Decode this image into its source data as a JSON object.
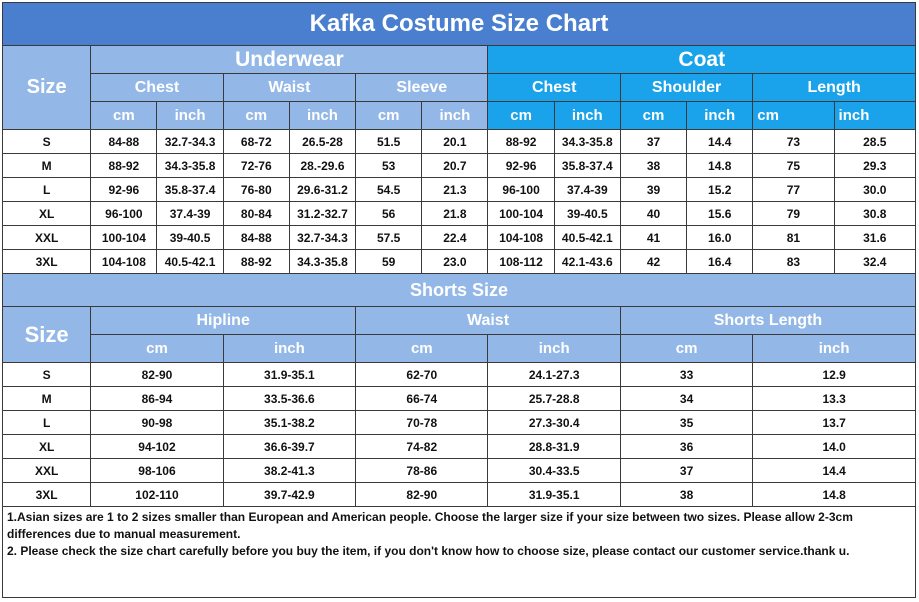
{
  "title": "Kafka Costume Size Chart",
  "top": {
    "size_label": "Size",
    "underwear_label": "Underwear",
    "coat_label": "Coat",
    "underwear_cols": [
      "Chest",
      "Waist",
      "Sleeve"
    ],
    "coat_cols": [
      "Chest",
      "Shoulder",
      "Length"
    ],
    "units": [
      "cm",
      "inch",
      "cm",
      "inch",
      "cm",
      "inch",
      "cm",
      "inch",
      "cm",
      "inch",
      "cm",
      "inch"
    ],
    "rows": [
      [
        "S",
        "84-88",
        "32.7-34.3",
        "68-72",
        "26.5-28",
        "51.5",
        "20.1",
        "88-92",
        "34.3-35.8",
        "37",
        "14.4",
        "73",
        "28.5"
      ],
      [
        "M",
        "88-92",
        "34.3-35.8",
        "72-76",
        "28.-29.6",
        "53",
        "20.7",
        "92-96",
        "35.8-37.4",
        "38",
        "14.8",
        "75",
        "29.3"
      ],
      [
        "L",
        "92-96",
        "35.8-37.4",
        "76-80",
        "29.6-31.2",
        "54.5",
        "21.3",
        "96-100",
        "37.4-39",
        "39",
        "15.2",
        "77",
        "30.0"
      ],
      [
        "XL",
        "96-100",
        "37.4-39",
        "80-84",
        "31.2-32.7",
        "56",
        "21.8",
        "100-104",
        "39-40.5",
        "40",
        "15.6",
        "79",
        "30.8"
      ],
      [
        "XXL",
        "100-104",
        "39-40.5",
        "84-88",
        "32.7-34.3",
        "57.5",
        "22.4",
        "104-108",
        "40.5-42.1",
        "41",
        "16.0",
        "81",
        "31.6"
      ],
      [
        "3XL",
        "104-108",
        "40.5-42.1",
        "88-92",
        "34.3-35.8",
        "59",
        "23.0",
        "108-112",
        "42.1-43.6",
        "42",
        "16.4",
        "83",
        "32.4"
      ]
    ]
  },
  "shorts": {
    "title": "Shorts Size",
    "size_label": "Size",
    "cols": [
      "Hipline",
      "Waist",
      "Shorts Length"
    ],
    "units": [
      "cm",
      "inch",
      "cm",
      "inch",
      "cm",
      "inch"
    ],
    "rows": [
      [
        "S",
        "82-90",
        "31.9-35.1",
        "62-70",
        "24.1-27.3",
        "33",
        "12.9"
      ],
      [
        "M",
        "86-94",
        "33.5-36.6",
        "66-74",
        "25.7-28.8",
        "34",
        "13.3"
      ],
      [
        "L",
        "90-98",
        "35.1-38.2",
        "70-78",
        "27.3-30.4",
        "35",
        "13.7"
      ],
      [
        "XL",
        "94-102",
        "36.6-39.7",
        "74-82",
        "28.8-31.9",
        "36",
        "14.0"
      ],
      [
        "XXL",
        "98-106",
        "38.2-41.3",
        "78-86",
        "30.4-33.5",
        "37",
        "14.4"
      ],
      [
        "3XL",
        "102-110",
        "39.7-42.9",
        "82-90",
        "31.9-35.1",
        "38",
        "14.8"
      ]
    ]
  },
  "notes": [
    "1.Asian sizes are 1 to 2 sizes smaller than European and American people. Choose the larger size if your size between two sizes. Please allow 2-3cm differences due to manual measurement.",
    "2. Please check the size chart carefully before you buy the item, if you don't know how to choose size, please contact our customer service.thank u."
  ],
  "colors": {
    "title_bg": "#4a7fd0",
    "underwear_bg": "#93b8e8",
    "coat_bg": "#1aa3ea",
    "border": "#3a3a3a"
  }
}
